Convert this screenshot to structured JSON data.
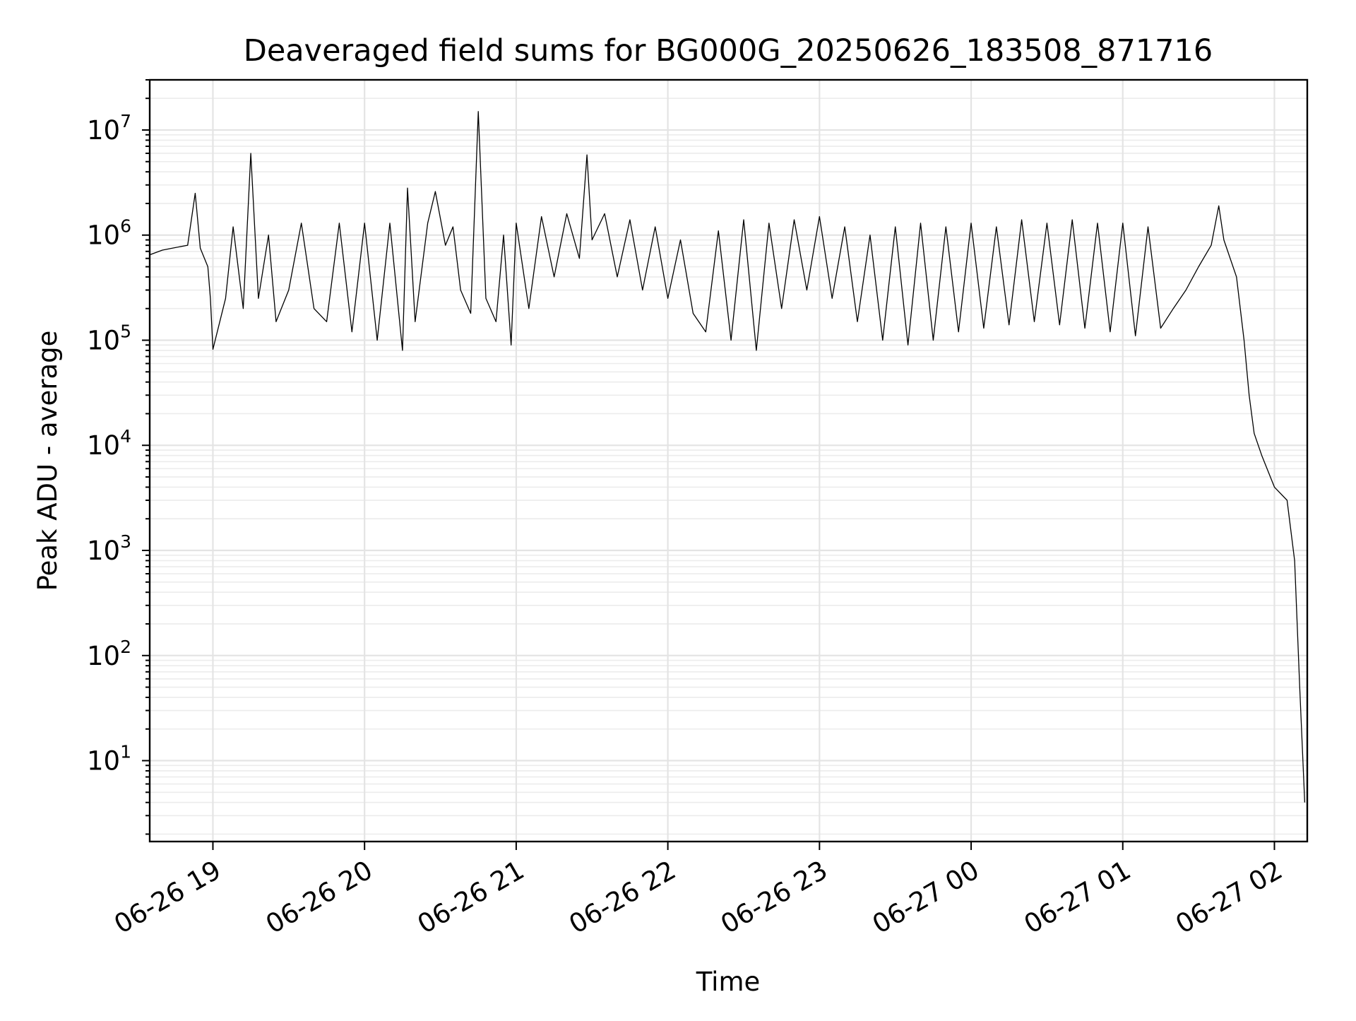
{
  "chart_data": {
    "type": "line",
    "title": "Deaveraged field sums for BG000G_20250626_183508_871716",
    "xlabel": "Time",
    "ylabel": "Peak ADU - average",
    "yscale": "log",
    "ylim": [
      1.7,
      30000000
    ],
    "xlim": [
      "06-26 18:35",
      "06-27 02:13"
    ],
    "grid": true,
    "grid_minor": true,
    "line_color": "#000000",
    "x_ticks": [
      "06-26 19",
      "06-26 20",
      "06-26 21",
      "06-26 22",
      "06-26 23",
      "06-27 00",
      "06-27 01",
      "06-27 02"
    ],
    "y_ticks": [
      {
        "value": 10,
        "base": "10",
        "exp": "1"
      },
      {
        "value": 100,
        "base": "10",
        "exp": "2"
      },
      {
        "value": 1000,
        "base": "10",
        "exp": "3"
      },
      {
        "value": 10000,
        "base": "10",
        "exp": "4"
      },
      {
        "value": 100000,
        "base": "10",
        "exp": "5"
      },
      {
        "value": 1000000,
        "base": "10",
        "exp": "6"
      },
      {
        "value": 10000000,
        "base": "10",
        "exp": "7"
      }
    ],
    "series": [
      {
        "points": [
          [
            "06-26 18:35",
            650000
          ],
          [
            "06-26 18:40",
            720000
          ],
          [
            "06-26 18:45",
            760000
          ],
          [
            "06-26 18:50",
            800000
          ],
          [
            "06-26 18:53",
            2500000
          ],
          [
            "06-26 18:55",
            750000
          ],
          [
            "06-26 18:58",
            500000
          ],
          [
            "06-26 18:59",
            250000
          ],
          [
            "06-26 19:00",
            82000
          ],
          [
            "06-26 19:05",
            250000
          ],
          [
            "06-26 19:08",
            1200000
          ],
          [
            "06-26 19:12",
            200000
          ],
          [
            "06-26 19:15",
            6000000
          ],
          [
            "06-26 19:18",
            250000
          ],
          [
            "06-26 19:22",
            1000000
          ],
          [
            "06-26 19:25",
            150000
          ],
          [
            "06-26 19:30",
            300000
          ],
          [
            "06-26 19:35",
            1300000
          ],
          [
            "06-26 19:40",
            200000
          ],
          [
            "06-26 19:45",
            150000
          ],
          [
            "06-26 19:50",
            1300000
          ],
          [
            "06-26 19:55",
            120000
          ],
          [
            "06-26 20:00",
            1300000
          ],
          [
            "06-26 20:05",
            100000
          ],
          [
            "06-26 20:10",
            1300000
          ],
          [
            "06-26 20:15",
            80000
          ],
          [
            "06-26 20:17",
            2800000
          ],
          [
            "06-26 20:20",
            150000
          ],
          [
            "06-26 20:25",
            1300000
          ],
          [
            "06-26 20:28",
            2600000
          ],
          [
            "06-26 20:32",
            800000
          ],
          [
            "06-26 20:35",
            1200000
          ],
          [
            "06-26 20:38",
            300000
          ],
          [
            "06-26 20:42",
            180000
          ],
          [
            "06-26 20:45",
            15000000
          ],
          [
            "06-26 20:48",
            250000
          ],
          [
            "06-26 20:52",
            150000
          ],
          [
            "06-26 20:55",
            1000000
          ],
          [
            "06-26 20:58",
            90000
          ],
          [
            "06-26 21:00",
            1300000
          ],
          [
            "06-26 21:05",
            200000
          ],
          [
            "06-26 21:10",
            1500000
          ],
          [
            "06-26 21:15",
            400000
          ],
          [
            "06-26 21:20",
            1600000
          ],
          [
            "06-26 21:25",
            600000
          ],
          [
            "06-26 21:28",
            5800000
          ],
          [
            "06-26 21:30",
            900000
          ],
          [
            "06-26 21:35",
            1600000
          ],
          [
            "06-26 21:40",
            400000
          ],
          [
            "06-26 21:45",
            1400000
          ],
          [
            "06-26 21:50",
            300000
          ],
          [
            "06-26 21:55",
            1200000
          ],
          [
            "06-26 22:00",
            250000
          ],
          [
            "06-26 22:05",
            900000
          ],
          [
            "06-26 22:10",
            180000
          ],
          [
            "06-26 22:15",
            120000
          ],
          [
            "06-26 22:20",
            1100000
          ],
          [
            "06-26 22:25",
            100000
          ],
          [
            "06-26 22:30",
            1400000
          ],
          [
            "06-26 22:35",
            80000
          ],
          [
            "06-26 22:40",
            1300000
          ],
          [
            "06-26 22:45",
            200000
          ],
          [
            "06-26 22:50",
            1400000
          ],
          [
            "06-26 22:55",
            300000
          ],
          [
            "06-26 23:00",
            1500000
          ],
          [
            "06-26 23:05",
            250000
          ],
          [
            "06-26 23:10",
            1200000
          ],
          [
            "06-26 23:15",
            150000
          ],
          [
            "06-26 23:20",
            1000000
          ],
          [
            "06-26 23:25",
            100000
          ],
          [
            "06-26 23:30",
            1200000
          ],
          [
            "06-26 23:35",
            90000
          ],
          [
            "06-26 23:40",
            1300000
          ],
          [
            "06-26 23:45",
            100000
          ],
          [
            "06-26 23:50",
            1200000
          ],
          [
            "06-26 23:55",
            120000
          ],
          [
            "06-27 00:00",
            1300000
          ],
          [
            "06-27 00:05",
            130000
          ],
          [
            "06-27 00:10",
            1200000
          ],
          [
            "06-27 00:15",
            140000
          ],
          [
            "06-27 00:20",
            1400000
          ],
          [
            "06-27 00:25",
            150000
          ],
          [
            "06-27 00:30",
            1300000
          ],
          [
            "06-27 00:35",
            140000
          ],
          [
            "06-27 00:40",
            1400000
          ],
          [
            "06-27 00:45",
            130000
          ],
          [
            "06-27 00:50",
            1300000
          ],
          [
            "06-27 00:55",
            120000
          ],
          [
            "06-27 01:00",
            1300000
          ],
          [
            "06-27 01:05",
            110000
          ],
          [
            "06-27 01:10",
            1200000
          ],
          [
            "06-27 01:15",
            130000
          ],
          [
            "06-27 01:20",
            200000
          ],
          [
            "06-27 01:25",
            300000
          ],
          [
            "06-27 01:30",
            500000
          ],
          [
            "06-27 01:35",
            800000
          ],
          [
            "06-27 01:38",
            1900000
          ],
          [
            "06-27 01:40",
            900000
          ],
          [
            "06-27 01:45",
            400000
          ],
          [
            "06-27 01:48",
            100000
          ],
          [
            "06-27 01:50",
            30000
          ],
          [
            "06-27 01:52",
            13000
          ],
          [
            "06-27 01:55",
            8000
          ],
          [
            "06-27 02:00",
            4000
          ],
          [
            "06-27 02:05",
            3000
          ],
          [
            "06-27 02:08",
            800
          ],
          [
            "06-27 02:10",
            50
          ],
          [
            "06-27 02:12",
            4
          ]
        ]
      }
    ]
  }
}
